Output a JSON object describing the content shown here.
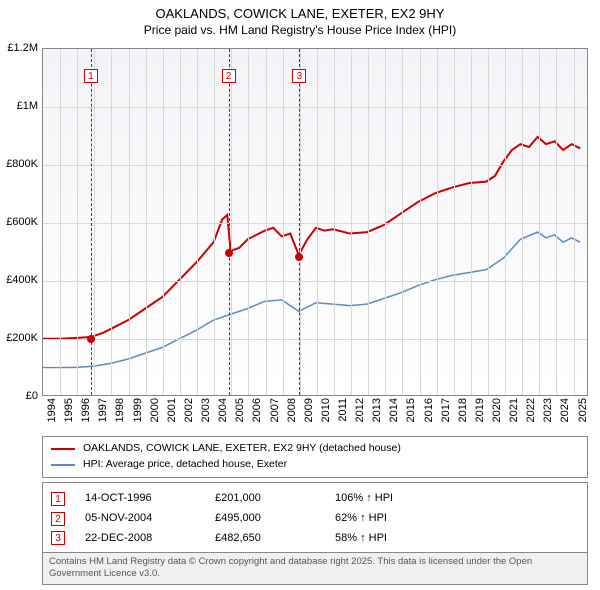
{
  "title": "OAKLANDS, COWICK LANE, EXETER, EX2 9HY",
  "subtitle": "Price paid vs. HM Land Registry's House Price Index (HPI)",
  "chart": {
    "type": "line",
    "background_gradient_top": "#f4f4f8",
    "background_gradient_bottom": "#ffffff",
    "border_color": "#888888",
    "grid_color": "#d8d8d8",
    "x_start": 1994,
    "x_end": 2025.9,
    "y_start": 0,
    "y_end": 1200000,
    "y_ticks": [
      {
        "v": 0,
        "label": "£0"
      },
      {
        "v": 200000,
        "label": "£200K"
      },
      {
        "v": 400000,
        "label": "£400K"
      },
      {
        "v": 600000,
        "label": "£600K"
      },
      {
        "v": 800000,
        "label": "£800K"
      },
      {
        "v": 1000000,
        "label": "£1M"
      },
      {
        "v": 1200000,
        "label": "£1.2M"
      }
    ],
    "x_ticks": [
      1994,
      1995,
      1996,
      1997,
      1998,
      1999,
      2000,
      2001,
      2002,
      2003,
      2004,
      2005,
      2006,
      2007,
      2008,
      2009,
      2010,
      2011,
      2012,
      2013,
      2014,
      2015,
      2016,
      2017,
      2018,
      2019,
      2020,
      2021,
      2022,
      2023,
      2024,
      2025
    ],
    "series": [
      {
        "name": "OAKLANDS, COWICK LANE, EXETER, EX2 9HY (detached house)",
        "color": "#cc0000",
        "width": 2,
        "points": [
          [
            1994,
            195000
          ],
          [
            1995,
            195000
          ],
          [
            1996,
            198000
          ],
          [
            1996.8,
            201000
          ],
          [
            1997.5,
            215000
          ],
          [
            1998,
            230000
          ],
          [
            1999,
            260000
          ],
          [
            2000,
            300000
          ],
          [
            2001,
            340000
          ],
          [
            2002,
            400000
          ],
          [
            2003,
            460000
          ],
          [
            2004,
            530000
          ],
          [
            2004.5,
            608000
          ],
          [
            2004.8,
            625000
          ],
          [
            2005,
            500000
          ],
          [
            2005.5,
            510000
          ],
          [
            2006,
            540000
          ],
          [
            2007,
            570000
          ],
          [
            2007.5,
            580000
          ],
          [
            2008,
            550000
          ],
          [
            2008.5,
            560000
          ],
          [
            2009,
            485000
          ],
          [
            2009.5,
            540000
          ],
          [
            2010,
            580000
          ],
          [
            2010.5,
            570000
          ],
          [
            2011,
            575000
          ],
          [
            2012,
            560000
          ],
          [
            2013,
            565000
          ],
          [
            2014,
            590000
          ],
          [
            2015,
            630000
          ],
          [
            2016,
            670000
          ],
          [
            2017,
            700000
          ],
          [
            2018,
            720000
          ],
          [
            2019,
            735000
          ],
          [
            2020,
            740000
          ],
          [
            2020.5,
            760000
          ],
          [
            2021,
            810000
          ],
          [
            2021.5,
            850000
          ],
          [
            2022,
            870000
          ],
          [
            2022.5,
            860000
          ],
          [
            2023,
            895000
          ],
          [
            2023.5,
            870000
          ],
          [
            2024,
            880000
          ],
          [
            2024.5,
            850000
          ],
          [
            2025,
            870000
          ],
          [
            2025.5,
            855000
          ]
        ]
      },
      {
        "name": "HPI: Average price, detached house, Exeter",
        "color": "#5b8bc4",
        "width": 1.5,
        "points": [
          [
            1994,
            95000
          ],
          [
            1995,
            95000
          ],
          [
            1996,
            96000
          ],
          [
            1997,
            100000
          ],
          [
            1998,
            110000
          ],
          [
            1999,
            125000
          ],
          [
            2000,
            145000
          ],
          [
            2001,
            165000
          ],
          [
            2002,
            195000
          ],
          [
            2003,
            225000
          ],
          [
            2004,
            260000
          ],
          [
            2005,
            280000
          ],
          [
            2006,
            300000
          ],
          [
            2007,
            325000
          ],
          [
            2008,
            330000
          ],
          [
            2009,
            290000
          ],
          [
            2010,
            320000
          ],
          [
            2011,
            315000
          ],
          [
            2012,
            310000
          ],
          [
            2013,
            315000
          ],
          [
            2014,
            335000
          ],
          [
            2015,
            355000
          ],
          [
            2016,
            380000
          ],
          [
            2017,
            400000
          ],
          [
            2018,
            415000
          ],
          [
            2019,
            425000
          ],
          [
            2020,
            435000
          ],
          [
            2021,
            475000
          ],
          [
            2022,
            540000
          ],
          [
            2023,
            565000
          ],
          [
            2023.5,
            545000
          ],
          [
            2024,
            555000
          ],
          [
            2024.5,
            530000
          ],
          [
            2025,
            545000
          ],
          [
            2025.5,
            530000
          ]
        ]
      }
    ],
    "markers": [
      {
        "n": "1",
        "x": 1996.8,
        "y": 201000,
        "label_y": 20
      },
      {
        "n": "2",
        "x": 2004.85,
        "y": 495000,
        "label_y": 20
      },
      {
        "n": "3",
        "x": 2008.98,
        "y": 482650,
        "label_y": 20
      }
    ],
    "marker_color": "#cc0000"
  },
  "legend": [
    {
      "color": "#cc0000",
      "label": "OAKLANDS, COWICK LANE, EXETER, EX2 9HY (detached house)"
    },
    {
      "color": "#5b8bc4",
      "label": "HPI: Average price, detached house, Exeter"
    }
  ],
  "sales": [
    {
      "n": "1",
      "date": "14-OCT-1996",
      "price": "£201,000",
      "hpi": "106% ↑ HPI"
    },
    {
      "n": "2",
      "date": "05-NOV-2004",
      "price": "£495,000",
      "hpi": "62% ↑ HPI"
    },
    {
      "n": "3",
      "date": "22-DEC-2008",
      "price": "£482,650",
      "hpi": "58% ↑ HPI"
    }
  ],
  "footer": "Contains HM Land Registry data © Crown copyright and database right 2025. This data is licensed under the Open Government Licence v3.0."
}
